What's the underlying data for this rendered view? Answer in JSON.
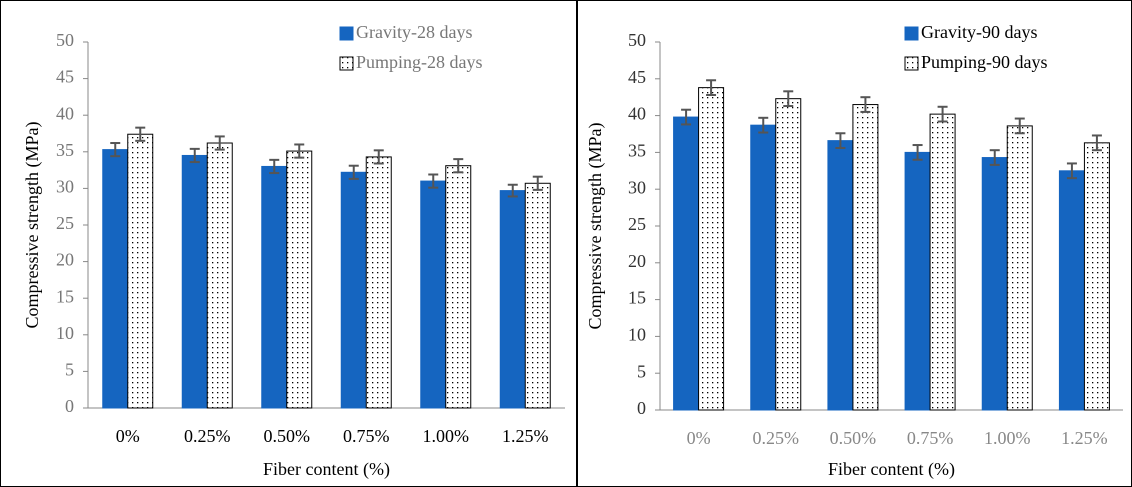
{
  "chart_data": [
    {
      "type": "bar",
      "ylabel": "Compressive strength (MPa)",
      "xlabel": "Fiber content (%)",
      "categories": [
        "0%",
        "0.25%",
        "0.50%",
        "0.75%",
        "1.00%",
        "1.25%"
      ],
      "ylim": [
        0,
        50
      ],
      "yticks": [
        0,
        5,
        10,
        15,
        20,
        25,
        30,
        35,
        40,
        45,
        50
      ],
      "series": [
        {
          "name": "Gravity-28 days",
          "color": "#1565c0",
          "values": [
            35.3,
            34.5,
            33.0,
            32.2,
            31.0,
            29.7
          ],
          "errors": [
            0.9,
            0.9,
            0.9,
            0.9,
            0.9,
            0.8
          ]
        },
        {
          "name": "Pumping-28 days",
          "color": "#ffffff",
          "pattern": "dotted",
          "values": [
            37.4,
            36.2,
            35.1,
            34.3,
            33.1,
            30.7
          ],
          "errors": [
            0.9,
            0.9,
            0.9,
            0.9,
            0.9,
            0.9
          ]
        }
      ]
    },
    {
      "type": "bar",
      "ylabel": "Compressive strength (MPa)",
      "xlabel": "Fiber content (%)",
      "categories": [
        "0%",
        "0.25%",
        "0.50%",
        "0.75%",
        "1.00%",
        "1.25%"
      ],
      "ylim": [
        0,
        50
      ],
      "yticks": [
        0,
        5,
        10,
        15,
        20,
        25,
        30,
        35,
        40,
        45,
        50
      ],
      "series": [
        {
          "name": "Gravity-90 days",
          "color": "#1565c0",
          "values": [
            39.8,
            38.7,
            36.6,
            35.0,
            34.3,
            32.5
          ],
          "errors": [
            1.0,
            1.0,
            1.0,
            1.0,
            1.0,
            1.0
          ]
        },
        {
          "name": "Pumping-90 days",
          "color": "#ffffff",
          "pattern": "dotted",
          "values": [
            43.8,
            42.3,
            41.5,
            40.2,
            38.6,
            36.3
          ],
          "errors": [
            1.0,
            1.0,
            1.0,
            1.0,
            1.0,
            1.0
          ]
        }
      ]
    }
  ]
}
